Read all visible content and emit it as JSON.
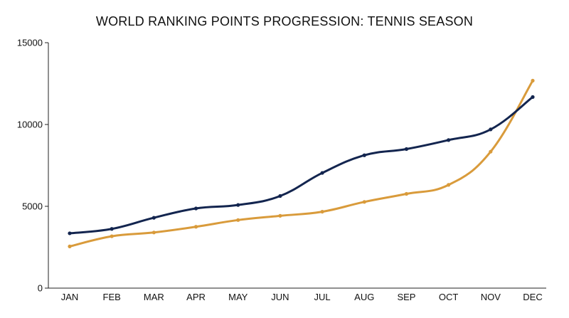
{
  "chart_data": {
    "type": "line",
    "title": "WORLD RANKING POINTS PROGRESSION: TENNIS SEASON",
    "xlabel": "",
    "ylabel": "",
    "categories": [
      "JAN",
      "FEB",
      "MAR",
      "APR",
      "MAY",
      "JUN",
      "JUL",
      "AUG",
      "SEP",
      "OCT",
      "NOV",
      "DEC"
    ],
    "ylim": [
      0,
      15000
    ],
    "yticks": [
      0,
      5000,
      10000,
      15000
    ],
    "grid": false,
    "legend": "none",
    "series": [
      {
        "color": "#13254f",
        "values": [
          3350,
          3620,
          4300,
          4870,
          5080,
          5630,
          7040,
          8120,
          8500,
          9050,
          9700,
          11680
        ]
      },
      {
        "color": "#d99b3b",
        "values": [
          2550,
          3170,
          3400,
          3750,
          4160,
          4420,
          4670,
          5270,
          5760,
          6310,
          8340,
          12680
        ]
      }
    ]
  }
}
